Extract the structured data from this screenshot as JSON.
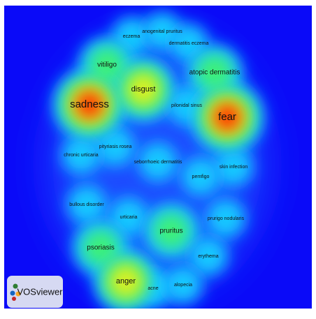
{
  "nodes": [
    {
      "label": "eczema"
    },
    {
      "label": "anogenital pruritus"
    },
    {
      "label": "dermatitis eczema"
    },
    {
      "label": "vitiligo"
    },
    {
      "label": "atopic dermatitis"
    },
    {
      "label": "disgust"
    },
    {
      "label": "sadness"
    },
    {
      "label": "pilonidal sinus"
    },
    {
      "label": "fear"
    },
    {
      "label": "pityriasis rosea"
    },
    {
      "label": "chronic urticaria"
    },
    {
      "label": "seborrhoeic dermatitis"
    },
    {
      "label": "skin infection"
    },
    {
      "label": "pemfigo"
    },
    {
      "label": "bullous disorder"
    },
    {
      "label": "urticaria"
    },
    {
      "label": "prurigo nodularis"
    },
    {
      "label": "pruritus"
    },
    {
      "label": "psoriasis"
    },
    {
      "label": "erythema"
    },
    {
      "label": "anger"
    },
    {
      "label": "acne"
    },
    {
      "label": "alopecia"
    }
  ],
  "logo": {
    "label": "VOSviewer"
  }
}
